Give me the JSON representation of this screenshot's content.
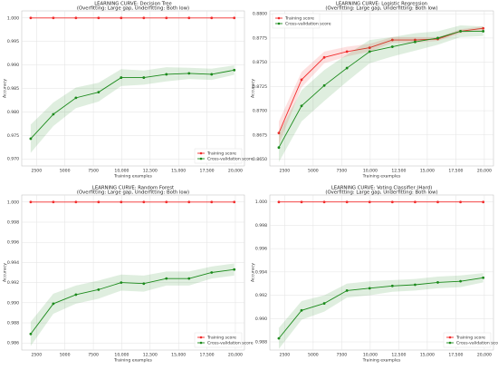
{
  "chart_data": [
    {
      "type": "line",
      "title": "LEARNING CURVE: Decision Tree",
      "subtitle": "(Overfitting: Large gap, Underfitting: Both low)",
      "xlabel": "Training examples",
      "ylabel": "Accuracy",
      "x": [
        1990,
        3980,
        5970,
        7960,
        9950,
        11940,
        13930,
        15920,
        17910,
        19900
      ],
      "series": [
        {
          "name": "Training score",
          "color": "#f22b2b",
          "values": [
            1.0,
            1.0,
            1.0,
            1.0,
            1.0,
            1.0,
            1.0,
            1.0,
            1.0,
            1.0
          ],
          "std": [
            0,
            0,
            0,
            0,
            0,
            0,
            0,
            0,
            0,
            0
          ]
        },
        {
          "name": "Cross-validation score",
          "color": "#1b8a1b",
          "values": [
            0.9743,
            0.9795,
            0.983,
            0.9842,
            0.9873,
            0.9873,
            0.988,
            0.9882,
            0.988,
            0.9889
          ],
          "std": [
            0.003,
            0.0025,
            0.0022,
            0.002,
            0.0018,
            0.0015,
            0.0015,
            0.0012,
            0.0012,
            0.001
          ]
        }
      ],
      "xlim": [
        1200,
        20800
      ],
      "ylim": [
        0.9685,
        1.0015
      ],
      "xticks": [
        2500,
        5000,
        7500,
        {
          "value": 10000,
          "label": "10,000"
        },
        {
          "value": 12500,
          "label": "12,500"
        },
        {
          "value": 15000,
          "label": "15,000"
        },
        {
          "value": 17500,
          "label": "17,500"
        },
        {
          "value": 20000,
          "label": "20,000"
        }
      ],
      "yticks": [
        {
          "value": 0.97,
          "label": "0.970"
        },
        0.975,
        {
          "value": 0.98,
          "label": "0.980"
        },
        0.985,
        {
          "value": 0.99,
          "label": "0.990"
        },
        0.995,
        {
          "value": 1.0,
          "label": "1.000"
        }
      ],
      "grid": true,
      "legend": "lower right"
    },
    {
      "type": "line",
      "title": "LEARNING CURVE: Logistic Regression",
      "subtitle": "(Overfitting: Large gap, Underfitting: Both low)",
      "xlabel": "Training examples",
      "ylabel": "Accuracy",
      "x": [
        1990,
        3980,
        5970,
        7960,
        9950,
        11940,
        13930,
        15920,
        17910,
        19900
      ],
      "series": [
        {
          "name": "Training score",
          "color": "#f22b2b",
          "values": [
            0.8677,
            0.8732,
            0.8755,
            0.8761,
            0.8765,
            0.8773,
            0.8773,
            0.8774,
            0.8782,
            0.8785
          ],
          "std": [
            0.0012,
            0.0008,
            0.0006,
            0.0005,
            0.0004,
            0.0003,
            0.0003,
            0.0002,
            0.0002,
            0.0002
          ]
        },
        {
          "name": "Cross-validation score",
          "color": "#1b8a1b",
          "values": [
            0.8662,
            0.8705,
            0.8726,
            0.8744,
            0.8761,
            0.8766,
            0.8771,
            0.8775,
            0.8782,
            0.8782
          ],
          "std": [
            0.0015,
            0.0016,
            0.0016,
            0.0014,
            0.0012,
            0.001,
            0.0009,
            0.0007,
            0.0006,
            0.0005
          ]
        }
      ],
      "xlim": [
        1200,
        20800
      ],
      "ylim": [
        0.8643,
        0.8803
      ],
      "xticks": [
        2500,
        5000,
        7500,
        {
          "value": 10000,
          "label": "10,000"
        },
        {
          "value": 12500,
          "label": "12,500"
        },
        {
          "value": 15000,
          "label": "15,000"
        },
        {
          "value": 17500,
          "label": "17,500"
        },
        {
          "value": 20000,
          "label": "20,000"
        }
      ],
      "yticks": [
        {
          "value": 0.865,
          "label": "0.8650"
        },
        {
          "value": 0.8675,
          "label": "0.8675"
        },
        {
          "value": 0.87,
          "label": "0.8700"
        },
        {
          "value": 0.8725,
          "label": "0.8725"
        },
        {
          "value": 0.875,
          "label": "0.8750"
        },
        {
          "value": 0.8775,
          "label": "0.8775"
        },
        {
          "value": 0.88,
          "label": "0.8800"
        }
      ],
      "grid": true,
      "legend": "upper left"
    },
    {
      "type": "line",
      "title": "LEARNING CURVE: Random Forest",
      "subtitle": "(Overfitting: Large gap, Underfitting: Both low)",
      "xlabel": "Training examples",
      "ylabel": "Accuracy",
      "x": [
        1990,
        3980,
        5970,
        7960,
        9950,
        11940,
        13930,
        15920,
        17910,
        19900
      ],
      "series": [
        {
          "name": "Training score",
          "color": "#f22b2b",
          "values": [
            1.0,
            1.0,
            1.0,
            1.0,
            1.0,
            1.0,
            1.0,
            1.0,
            1.0,
            1.0
          ],
          "std": [
            0,
            0,
            0,
            0,
            0,
            0,
            0,
            0,
            0,
            0
          ]
        },
        {
          "name": "Cross-validation score",
          "color": "#1b8a1b",
          "values": [
            0.9869,
            0.9899,
            0.9908,
            0.9913,
            0.992,
            0.9919,
            0.9924,
            0.9924,
            0.993,
            0.9933
          ],
          "std": [
            0.0012,
            0.001,
            0.0009,
            0.0009,
            0.0008,
            0.0008,
            0.0007,
            0.0007,
            0.0006,
            0.0006
          ]
        }
      ],
      "xlim": [
        1200,
        20800
      ],
      "ylim": [
        0.9853,
        1.0007
      ],
      "xticks": [
        2500,
        5000,
        7500,
        {
          "value": 10000,
          "label": "10,000"
        },
        {
          "value": 12500,
          "label": "12,500"
        },
        {
          "value": 15000,
          "label": "15,000"
        },
        {
          "value": 17500,
          "label": "17,500"
        },
        {
          "value": 20000,
          "label": "20,000"
        }
      ],
      "yticks": [
        0.986,
        0.988,
        {
          "value": 0.99,
          "label": "0.990"
        },
        0.992,
        0.994,
        0.996,
        0.998,
        {
          "value": 1.0,
          "label": "1.000"
        }
      ],
      "grid": true,
      "legend": "lower right"
    },
    {
      "type": "line",
      "title": "LEARNING CURVE: Voting Classifier (Hard)",
      "subtitle": "(Overfitting: Large gap, Underfitting: Both low)",
      "xlabel": "Training examples",
      "ylabel": "Accuracy",
      "x": [
        1990,
        3980,
        5970,
        7960,
        9950,
        11940,
        13930,
        15920,
        17910,
        19900
      ],
      "series": [
        {
          "name": "Training score",
          "color": "#f22b2b",
          "values": [
            1.0,
            1.0,
            1.0,
            1.0,
            1.0,
            1.0,
            1.0,
            1.0,
            1.0,
            1.0
          ],
          "std": [
            0,
            0,
            0,
            0,
            0,
            0,
            0,
            0,
            0,
            0
          ]
        },
        {
          "name": "Cross-validation score",
          "color": "#1b8a1b",
          "values": [
            0.9883,
            0.9907,
            0.9913,
            0.9924,
            0.9926,
            0.9928,
            0.9929,
            0.9931,
            0.9932,
            0.9935
          ],
          "std": [
            0.0009,
            0.0008,
            0.0007,
            0.0006,
            0.0006,
            0.0005,
            0.0005,
            0.0005,
            0.0005,
            0.0004
          ]
        }
      ],
      "xlim": [
        1200,
        20800
      ],
      "ylim": [
        0.9873,
        1.0006
      ],
      "xticks": [
        2500,
        5000,
        7500,
        {
          "value": 10000,
          "label": "10,000"
        },
        {
          "value": 12500,
          "label": "12,500"
        },
        {
          "value": 15000,
          "label": "15,000"
        },
        {
          "value": 17500,
          "label": "17,500"
        },
        {
          "value": 20000,
          "label": "20,000"
        }
      ],
      "yticks": [
        0.988,
        {
          "value": 0.99,
          "label": "0.990"
        },
        0.992,
        0.994,
        0.996,
        0.998,
        {
          "value": 1.0,
          "label": "1.000"
        }
      ],
      "grid": true,
      "legend": "lower right"
    }
  ]
}
